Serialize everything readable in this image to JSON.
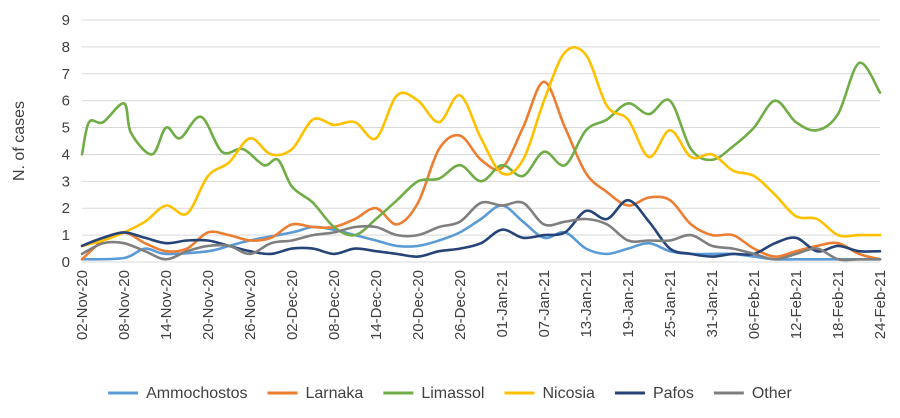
{
  "chart_data": {
    "type": "line",
    "title": "",
    "xlabel": "",
    "ylabel": "N. of cases",
    "ylim": [
      0,
      9
    ],
    "yticks": [
      "0",
      "1",
      "2",
      "3",
      "4",
      "5",
      "6",
      "7",
      "8",
      "9"
    ],
    "grid": true,
    "legend_position": "bottom",
    "x_tick_labels": [
      "02-Nov-20",
      "08-Nov-20",
      "14-Nov-20",
      "20-Nov-20",
      "26-Nov-20",
      "02-Dec-20",
      "08-Dec-20",
      "14-Dec-20",
      "20-Dec-20",
      "26-Dec-20",
      "01-Jan-21",
      "07-Jan-21",
      "13-Jan-21",
      "19-Jan-21",
      "25-Jan-21",
      "31-Jan-21",
      "06-Feb-21",
      "12-Feb-21",
      "18-Feb-21",
      "24-Feb-21"
    ],
    "x_start": "2020-11-02",
    "x_end": "2021-02-24",
    "series": [
      {
        "name": "Ammochostos",
        "color": "#5B9BD5",
        "points": [
          [
            "2020-11-02",
            0.1
          ],
          [
            "2020-11-08",
            0.15
          ],
          [
            "2020-11-11",
            0.5
          ],
          [
            "2020-11-14",
            0.3
          ],
          [
            "2020-11-20",
            0.4
          ],
          [
            "2020-11-23",
            0.6
          ],
          [
            "2020-11-26",
            0.8
          ],
          [
            "2020-12-02",
            1.1
          ],
          [
            "2020-12-05",
            1.3
          ],
          [
            "2020-12-08",
            1.2
          ],
          [
            "2020-12-11",
            1.0
          ],
          [
            "2020-12-14",
            0.8
          ],
          [
            "2020-12-17",
            0.6
          ],
          [
            "2020-12-20",
            0.6
          ],
          [
            "2020-12-23",
            0.8
          ],
          [
            "2020-12-26",
            1.1
          ],
          [
            "2020-12-29",
            1.6
          ],
          [
            "2021-01-01",
            2.1
          ],
          [
            "2021-01-04",
            1.5
          ],
          [
            "2021-01-07",
            0.9
          ],
          [
            "2021-01-10",
            1.1
          ],
          [
            "2021-01-13",
            0.5
          ],
          [
            "2021-01-16",
            0.3
          ],
          [
            "2021-01-19",
            0.5
          ],
          [
            "2021-01-22",
            0.7
          ],
          [
            "2021-01-25",
            0.4
          ],
          [
            "2021-01-28",
            0.3
          ],
          [
            "2021-01-31",
            0.3
          ],
          [
            "2021-02-03",
            0.3
          ],
          [
            "2021-02-06",
            0.2
          ],
          [
            "2021-02-09",
            0.1
          ],
          [
            "2021-02-12",
            0.1
          ],
          [
            "2021-02-15",
            0.1
          ],
          [
            "2021-02-18",
            0.1
          ],
          [
            "2021-02-21",
            0.1
          ],
          [
            "2021-02-24",
            0.1
          ]
        ]
      },
      {
        "name": "Larnaka",
        "color": "#ED7D31",
        "points": [
          [
            "2020-11-02",
            0.1
          ],
          [
            "2020-11-05",
            0.8
          ],
          [
            "2020-11-08",
            1.1
          ],
          [
            "2020-11-11",
            0.7
          ],
          [
            "2020-11-14",
            0.4
          ],
          [
            "2020-11-17",
            0.5
          ],
          [
            "2020-11-20",
            1.1
          ],
          [
            "2020-11-23",
            1.0
          ],
          [
            "2020-11-26",
            0.8
          ],
          [
            "2020-11-29",
            0.9
          ],
          [
            "2020-12-02",
            1.4
          ],
          [
            "2020-12-05",
            1.3
          ],
          [
            "2020-12-08",
            1.3
          ],
          [
            "2020-12-11",
            1.6
          ],
          [
            "2020-12-14",
            2.0
          ],
          [
            "2020-12-17",
            1.4
          ],
          [
            "2020-12-20",
            2.2
          ],
          [
            "2020-12-23",
            4.2
          ],
          [
            "2020-12-26",
            4.7
          ],
          [
            "2020-12-29",
            3.8
          ],
          [
            "2021-01-01",
            3.5
          ],
          [
            "2021-01-04",
            5.0
          ],
          [
            "2021-01-07",
            6.7
          ],
          [
            "2021-01-10",
            5.0
          ],
          [
            "2021-01-13",
            3.3
          ],
          [
            "2021-01-16",
            2.6
          ],
          [
            "2021-01-19",
            2.1
          ],
          [
            "2021-01-22",
            2.4
          ],
          [
            "2021-01-25",
            2.3
          ],
          [
            "2021-01-28",
            1.4
          ],
          [
            "2021-01-31",
            1.0
          ],
          [
            "2021-02-03",
            1.0
          ],
          [
            "2021-02-06",
            0.5
          ],
          [
            "2021-02-09",
            0.2
          ],
          [
            "2021-02-12",
            0.4
          ],
          [
            "2021-02-15",
            0.6
          ],
          [
            "2021-02-18",
            0.7
          ],
          [
            "2021-02-21",
            0.3
          ],
          [
            "2021-02-24",
            0.1
          ]
        ]
      },
      {
        "name": "Limassol",
        "color": "#70AD47",
        "points": [
          [
            "2020-11-02",
            4.0
          ],
          [
            "2020-11-03",
            5.2
          ],
          [
            "2020-11-05",
            5.2
          ],
          [
            "2020-11-08",
            5.9
          ],
          [
            "2020-11-09",
            4.8
          ],
          [
            "2020-11-12",
            4.0
          ],
          [
            "2020-11-14",
            5.0
          ],
          [
            "2020-11-16",
            4.6
          ],
          [
            "2020-11-19",
            5.4
          ],
          [
            "2020-11-22",
            4.1
          ],
          [
            "2020-11-25",
            4.2
          ],
          [
            "2020-11-28",
            3.6
          ],
          [
            "2020-11-30",
            3.8
          ],
          [
            "2020-12-02",
            2.8
          ],
          [
            "2020-12-05",
            2.2
          ],
          [
            "2020-12-08",
            1.3
          ],
          [
            "2020-12-11",
            1.0
          ],
          [
            "2020-12-14",
            1.6
          ],
          [
            "2020-12-17",
            2.3
          ],
          [
            "2020-12-20",
            3.0
          ],
          [
            "2020-12-23",
            3.1
          ],
          [
            "2020-12-26",
            3.6
          ],
          [
            "2020-12-29",
            3.0
          ],
          [
            "2021-01-01",
            3.6
          ],
          [
            "2021-01-04",
            3.2
          ],
          [
            "2021-01-07",
            4.1
          ],
          [
            "2021-01-10",
            3.6
          ],
          [
            "2021-01-13",
            4.9
          ],
          [
            "2021-01-16",
            5.3
          ],
          [
            "2021-01-19",
            5.9
          ],
          [
            "2021-01-22",
            5.5
          ],
          [
            "2021-01-25",
            6.0
          ],
          [
            "2021-01-28",
            4.2
          ],
          [
            "2021-01-31",
            3.8
          ],
          [
            "2021-02-03",
            4.3
          ],
          [
            "2021-02-06",
            5.0
          ],
          [
            "2021-02-09",
            6.0
          ],
          [
            "2021-02-12",
            5.2
          ],
          [
            "2021-02-15",
            4.9
          ],
          [
            "2021-02-18",
            5.5
          ],
          [
            "2021-02-21",
            7.4
          ],
          [
            "2021-02-24",
            6.3
          ]
        ]
      },
      {
        "name": "Nicosia",
        "color": "#FFC000",
        "points": [
          [
            "2020-11-02",
            0.6
          ],
          [
            "2020-11-05",
            0.8
          ],
          [
            "2020-11-08",
            1.1
          ],
          [
            "2020-11-11",
            1.5
          ],
          [
            "2020-11-14",
            2.1
          ],
          [
            "2020-11-17",
            1.8
          ],
          [
            "2020-11-20",
            3.2
          ],
          [
            "2020-11-23",
            3.7
          ],
          [
            "2020-11-26",
            4.6
          ],
          [
            "2020-11-29",
            4.0
          ],
          [
            "2020-12-02",
            4.2
          ],
          [
            "2020-12-05",
            5.3
          ],
          [
            "2020-12-08",
            5.1
          ],
          [
            "2020-12-11",
            5.2
          ],
          [
            "2020-12-14",
            4.6
          ],
          [
            "2020-12-17",
            6.2
          ],
          [
            "2020-12-20",
            6.0
          ],
          [
            "2020-12-23",
            5.2
          ],
          [
            "2020-12-26",
            6.2
          ],
          [
            "2020-12-29",
            4.6
          ],
          [
            "2021-01-01",
            3.3
          ],
          [
            "2021-01-04",
            3.8
          ],
          [
            "2021-01-07",
            6.0
          ],
          [
            "2021-01-10",
            7.8
          ],
          [
            "2021-01-13",
            7.7
          ],
          [
            "2021-01-16",
            5.8
          ],
          [
            "2021-01-19",
            5.3
          ],
          [
            "2021-01-22",
            3.9
          ],
          [
            "2021-01-25",
            4.9
          ],
          [
            "2021-01-28",
            3.9
          ],
          [
            "2021-01-31",
            4.0
          ],
          [
            "2021-02-03",
            3.4
          ],
          [
            "2021-02-06",
            3.2
          ],
          [
            "2021-02-09",
            2.5
          ],
          [
            "2021-02-12",
            1.7
          ],
          [
            "2021-02-15",
            1.6
          ],
          [
            "2021-02-18",
            1.0
          ],
          [
            "2021-02-21",
            1.0
          ],
          [
            "2021-02-24",
            1.0
          ]
        ]
      },
      {
        "name": "Pafos",
        "color": "#264478",
        "points": [
          [
            "2020-11-02",
            0.6
          ],
          [
            "2020-11-05",
            0.9
          ],
          [
            "2020-11-08",
            1.1
          ],
          [
            "2020-11-11",
            0.9
          ],
          [
            "2020-11-14",
            0.7
          ],
          [
            "2020-11-17",
            0.8
          ],
          [
            "2020-11-20",
            0.8
          ],
          [
            "2020-11-23",
            0.6
          ],
          [
            "2020-11-26",
            0.4
          ],
          [
            "2020-11-29",
            0.3
          ],
          [
            "2020-12-02",
            0.5
          ],
          [
            "2020-12-05",
            0.5
          ],
          [
            "2020-12-08",
            0.3
          ],
          [
            "2020-12-11",
            0.5
          ],
          [
            "2020-12-14",
            0.4
          ],
          [
            "2020-12-17",
            0.3
          ],
          [
            "2020-12-20",
            0.2
          ],
          [
            "2020-12-23",
            0.4
          ],
          [
            "2020-12-26",
            0.5
          ],
          [
            "2020-12-29",
            0.7
          ],
          [
            "2021-01-01",
            1.2
          ],
          [
            "2021-01-04",
            0.9
          ],
          [
            "2021-01-07",
            1.0
          ],
          [
            "2021-01-10",
            1.1
          ],
          [
            "2021-01-13",
            1.9
          ],
          [
            "2021-01-16",
            1.6
          ],
          [
            "2021-01-19",
            2.3
          ],
          [
            "2021-01-22",
            1.5
          ],
          [
            "2021-01-25",
            0.5
          ],
          [
            "2021-01-28",
            0.3
          ],
          [
            "2021-01-31",
            0.2
          ],
          [
            "2021-02-03",
            0.3
          ],
          [
            "2021-02-06",
            0.3
          ],
          [
            "2021-02-09",
            0.7
          ],
          [
            "2021-02-12",
            0.9
          ],
          [
            "2021-02-15",
            0.4
          ],
          [
            "2021-02-18",
            0.6
          ],
          [
            "2021-02-21",
            0.4
          ],
          [
            "2021-02-24",
            0.4
          ]
        ]
      },
      {
        "name": "Other",
        "color": "#7F7F7F",
        "points": [
          [
            "2020-11-02",
            0.3
          ],
          [
            "2020-11-05",
            0.7
          ],
          [
            "2020-11-08",
            0.7
          ],
          [
            "2020-11-11",
            0.4
          ],
          [
            "2020-11-14",
            0.1
          ],
          [
            "2020-11-17",
            0.4
          ],
          [
            "2020-11-20",
            0.6
          ],
          [
            "2020-11-23",
            0.6
          ],
          [
            "2020-11-26",
            0.3
          ],
          [
            "2020-11-29",
            0.7
          ],
          [
            "2020-12-02",
            0.8
          ],
          [
            "2020-12-05",
            1.0
          ],
          [
            "2020-12-08",
            1.1
          ],
          [
            "2020-12-11",
            1.3
          ],
          [
            "2020-12-14",
            1.3
          ],
          [
            "2020-12-17",
            1.0
          ],
          [
            "2020-12-20",
            1.0
          ],
          [
            "2020-12-23",
            1.3
          ],
          [
            "2020-12-26",
            1.5
          ],
          [
            "2020-12-29",
            2.2
          ],
          [
            "2021-01-01",
            2.1
          ],
          [
            "2021-01-04",
            2.2
          ],
          [
            "2021-01-07",
            1.4
          ],
          [
            "2021-01-10",
            1.5
          ],
          [
            "2021-01-13",
            1.6
          ],
          [
            "2021-01-16",
            1.4
          ],
          [
            "2021-01-19",
            0.8
          ],
          [
            "2021-01-22",
            0.8
          ],
          [
            "2021-01-25",
            0.8
          ],
          [
            "2021-01-28",
            1.0
          ],
          [
            "2021-01-31",
            0.6
          ],
          [
            "2021-02-03",
            0.5
          ],
          [
            "2021-02-06",
            0.3
          ],
          [
            "2021-02-09",
            0.1
          ],
          [
            "2021-02-12",
            0.3
          ],
          [
            "2021-02-15",
            0.5
          ],
          [
            "2021-02-18",
            0.1
          ],
          [
            "2021-02-21",
            0.1
          ],
          [
            "2021-02-24",
            0.1
          ]
        ]
      }
    ]
  }
}
